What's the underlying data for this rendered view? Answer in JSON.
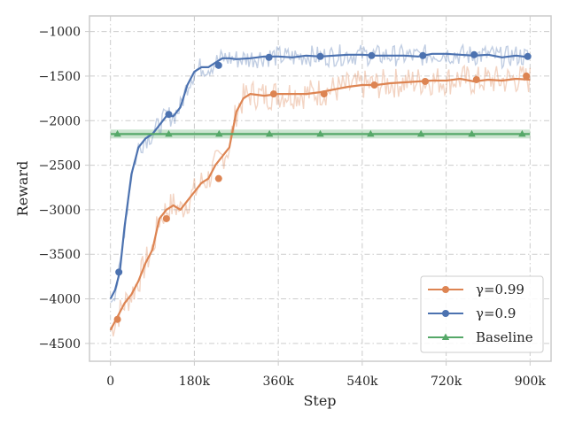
{
  "chart_data": {
    "type": "line",
    "xlabel": "Step",
    "ylabel": "Reward",
    "xlim": [
      -45000,
      945000
    ],
    "ylim": [
      -4700,
      -825
    ],
    "x_ticks": [
      0,
      180000,
      360000,
      540000,
      720000,
      900000
    ],
    "x_tick_labels": [
      "0",
      "180k",
      "360k",
      "540k",
      "720k",
      "900k"
    ],
    "y_ticks": [
      -4500,
      -4000,
      -3500,
      -3000,
      -2500,
      -2000,
      -1500,
      -1000
    ],
    "y_tick_labels": [
      "−4500",
      "−4000",
      "−3500",
      "−3000",
      "−2500",
      "−2000",
      "−1500",
      "−1000"
    ],
    "grid": true,
    "legend_position": "lower-right",
    "series": [
      {
        "name": "γ=0.99",
        "color": "#dd8452",
        "marker": "circle",
        "x": [
          0,
          15000,
          30000,
          45000,
          60000,
          75000,
          90000,
          105000,
          120000,
          135000,
          150000,
          165000,
          180000,
          195000,
          210000,
          225000,
          240000,
          255000,
          270000,
          285000,
          300000,
          330000,
          360000,
          390000,
          420000,
          450000,
          480000,
          510000,
          540000,
          570000,
          600000,
          630000,
          660000,
          690000,
          720000,
          750000,
          780000,
          810000,
          840000,
          870000,
          900000
        ],
        "values": [
          -4350,
          -4200,
          -4050,
          -3950,
          -3800,
          -3600,
          -3450,
          -3100,
          -3000,
          -2950,
          -3000,
          -2900,
          -2800,
          -2700,
          -2650,
          -2500,
          -2400,
          -2300,
          -1900,
          -1750,
          -1700,
          -1720,
          -1700,
          -1700,
          -1700,
          -1680,
          -1650,
          -1620,
          -1600,
          -1600,
          -1580,
          -1570,
          -1560,
          -1550,
          -1550,
          -1530,
          -1560,
          -1540,
          -1550,
          -1530,
          -1540
        ],
        "marker_x": [
          15000,
          120000,
          232000,
          350000,
          458000,
          566000,
          675000,
          785000,
          892000
        ],
        "marker_values": [
          -4230,
          -3100,
          -2650,
          -1700,
          -1700,
          -1600,
          -1560,
          -1540,
          -1500
        ]
      },
      {
        "name": "γ=0.9",
        "color": "#4c72b0",
        "marker": "circle",
        "x": [
          0,
          10000,
          20000,
          30000,
          45000,
          60000,
          75000,
          90000,
          105000,
          120000,
          135000,
          150000,
          165000,
          180000,
          195000,
          210000,
          225000,
          240000,
          255000,
          270000,
          300000,
          330000,
          360000,
          390000,
          420000,
          450000,
          480000,
          510000,
          540000,
          570000,
          600000,
          630000,
          660000,
          690000,
          720000,
          750000,
          780000,
          810000,
          840000,
          870000,
          900000
        ],
        "values": [
          -4000,
          -3900,
          -3700,
          -3200,
          -2600,
          -2300,
          -2200,
          -2150,
          -2050,
          -1950,
          -1950,
          -1850,
          -1600,
          -1450,
          -1400,
          -1400,
          -1350,
          -1300,
          -1300,
          -1310,
          -1300,
          -1280,
          -1280,
          -1290,
          -1270,
          -1280,
          -1270,
          -1260,
          -1260,
          -1270,
          -1270,
          -1270,
          -1280,
          -1250,
          -1250,
          -1260,
          -1270,
          -1260,
          -1290,
          -1270,
          -1290
        ],
        "marker_x": [
          18000,
          125000,
          232000,
          340000,
          450000,
          560000,
          670000,
          780000,
          895000
        ],
        "marker_values": [
          -3700,
          -1930,
          -1380,
          -1290,
          -1280,
          -1270,
          -1270,
          -1260,
          -1280
        ]
      },
      {
        "name": "Baseline",
        "color": "#55a868",
        "marker": "triangle",
        "x": [
          0,
          900000
        ],
        "values": [
          -2150,
          -2150
        ],
        "band": [
          -2200,
          -2100
        ],
        "marker_x": [
          15000,
          125000,
          233000,
          341000,
          450000,
          558000,
          666000,
          775000,
          883000
        ],
        "marker_values": [
          -2150,
          -2150,
          -2150,
          -2150,
          -2150,
          -2150,
          -2150,
          -2150,
          -2150
        ]
      }
    ]
  }
}
